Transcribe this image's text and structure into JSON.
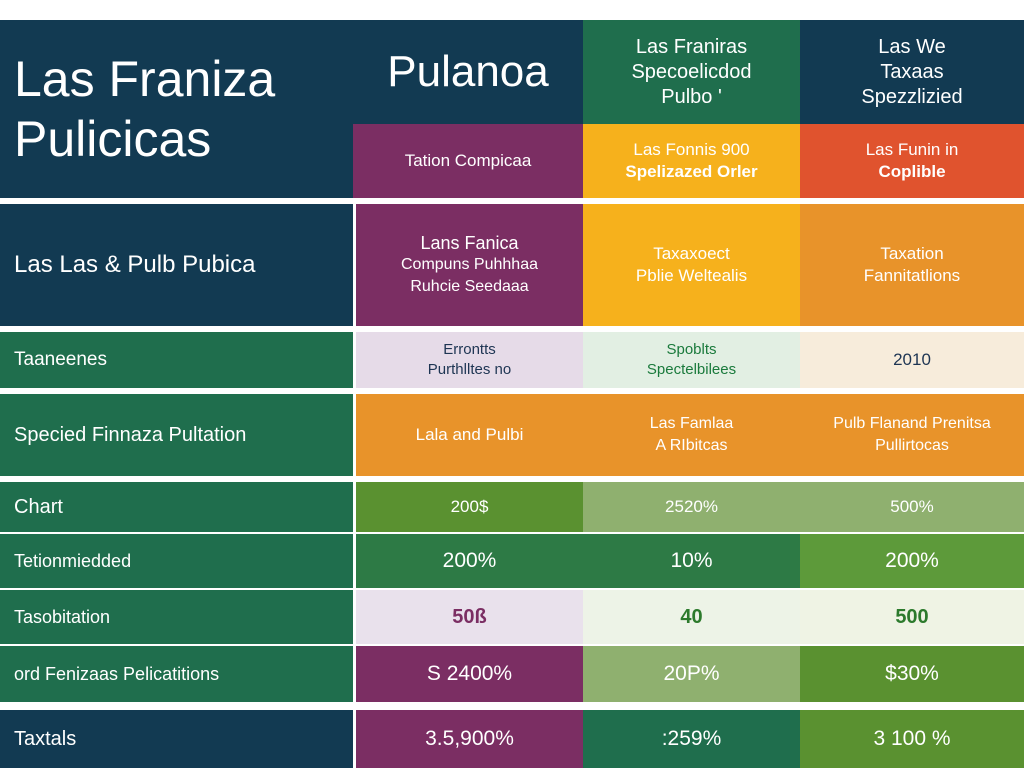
{
  "header": {
    "title_line1": "Las Franiza",
    "title_line2": "Pulicicas",
    "col1_title": "Pulanoa",
    "col2": [
      "Las Franiras",
      "Specoelicdod",
      "Pulbo '"
    ],
    "col3": [
      "Las We",
      "Taxaas",
      "Spezzlizied"
    ]
  },
  "subheader": {
    "c1": "Tation Compicaa",
    "c2": [
      "Las Fonnis 900",
      "Spelizazed Orler"
    ],
    "c3": [
      "Las Funin in",
      "Coplible"
    ]
  },
  "rows": [
    {
      "label": [
        "Las Las & Pulb Pubica"
      ],
      "c1": [
        "Lans Fanica",
        "Compuns Puhhhaa",
        "Ruhcie Seedaaa"
      ],
      "c2": [
        "Taxaxoect",
        "Pblie Weltealis"
      ],
      "c3": [
        "Taxation",
        "Fannitatlions"
      ]
    },
    {
      "label": [
        "Taaneenes"
      ],
      "c1": [
        "Errontts",
        "Purthlltes no"
      ],
      "c2": [
        "Spoblts",
        "Spectelbilees"
      ],
      "c3": [
        "2010"
      ]
    },
    {
      "label": [
        "Specied Finnaza Pultation"
      ],
      "c1": [
        "Lala and Pulbi"
      ],
      "c2": [
        "Las Famlaa",
        "A RIbitcas"
      ],
      "c3": [
        "Pulb Flanand Prenitsa",
        "Pullirtocas"
      ]
    },
    {
      "label": [
        "Chart"
      ],
      "c1": [
        "200$"
      ],
      "c2": [
        "2520%"
      ],
      "c3": [
        "500%"
      ]
    },
    {
      "label": [
        "Tetionmiedded"
      ],
      "c1": [
        "200%"
      ],
      "c2": [
        "10%"
      ],
      "c3": [
        "200%"
      ]
    },
    {
      "label": [
        "Tasobitation"
      ],
      "c1": [
        "50ß"
      ],
      "c2": [
        "40"
      ],
      "c3": [
        "500"
      ]
    },
    {
      "label": [
        "ord Fenizaas Pelicatitions"
      ],
      "c1": [
        "S 2400%"
      ],
      "c2": [
        "20P%"
      ],
      "c3": [
        "$30%"
      ]
    },
    {
      "label": [
        "Taxtals"
      ],
      "c1": [
        "3.5,900%"
      ],
      "c2": [
        ":259%"
      ],
      "c3": [
        "3 100 %"
      ]
    }
  ]
}
